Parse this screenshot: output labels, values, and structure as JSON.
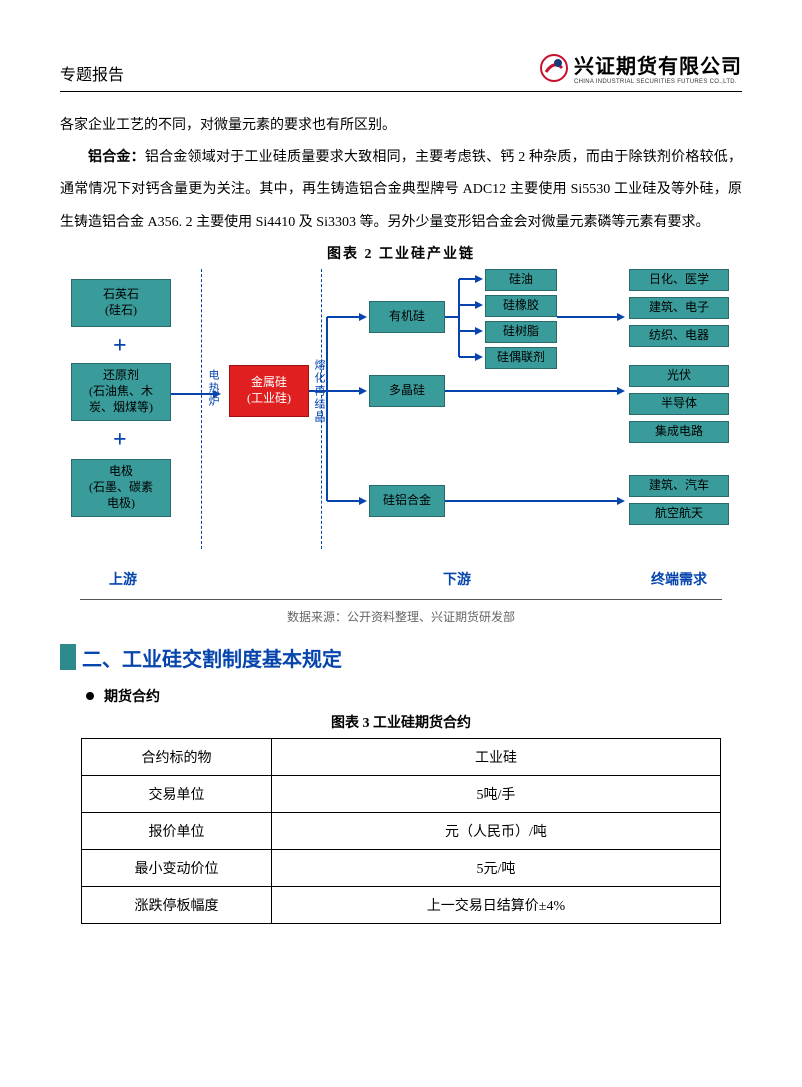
{
  "header": {
    "title": "专题报告"
  },
  "logo": {
    "zh": "兴证期货有限公司",
    "en": "CHINA INDUSTRIAL SECURITIES FUTURES CO.,LTD.",
    "red": "#c8102e",
    "blue": "#1a3a7a"
  },
  "body": {
    "p1": "各家企业工艺的不同，对微量元素的要求也有所区别。",
    "p2_strong": "铝合金：",
    "p2": "铝合金领域对于工业硅质量要求大致相同，主要考虑铁、钙 2 种杂质，而由于除铁剂价格较低，通常情况下对钙含量更为关注。其中，再生铸造铝合金典型牌号 ADC12 主要使用 Si5530 工业硅及等外硅，原生铸造铝合金 A356. 2 主要使用 Si4410 及 Si3303 等。另外少量变形铝合金会对微量元素磷等元素有要求。"
  },
  "fig2": {
    "title": "图表 2   工业硅产业链",
    "source": "数据来源：公开资料整理、兴证期货研发部",
    "colors": {
      "teal": "#3a9b9b",
      "teal_border": "#2a6a6a",
      "red": "#e02020",
      "blue_line": "#0645ad",
      "text_blue": "#0645ad"
    },
    "upstream": {
      "n1": "石英石\n(硅石)",
      "n2": "还原剂\n(石油焦、木\n炭、烟煤等)",
      "n3": "电极\n(石墨、碳素\n电极)"
    },
    "center": "金属硅\n(工业硅)",
    "vlabel_left": "电热炉",
    "vlabel_right": "熔化再结晶",
    "mid": {
      "organic": "有机硅",
      "poly": "多晶硅",
      "alloy": "硅铝合金"
    },
    "organic_out": [
      "硅油",
      "硅橡胶",
      "硅树脂",
      "硅偶联剂"
    ],
    "end_organic": [
      "日化、医学",
      "建筑、电子",
      "纺织、电器"
    ],
    "end_poly": [
      "光伏",
      "半导体",
      "集成电路"
    ],
    "end_alloy": [
      "建筑、汽车",
      "航空航天"
    ],
    "sections": {
      "up": "上游",
      "down": "下游",
      "end": "终端需求"
    }
  },
  "section2": {
    "heading": "二、工业硅交割制度基本规定",
    "bullet": "期货合约"
  },
  "fig3": {
    "title": "图表 3 工业硅期货合约",
    "rows": [
      [
        "合约标的物",
        "工业硅"
      ],
      [
        "交易单位",
        "5吨/手"
      ],
      [
        "报价单位",
        "元（人民币）/吨"
      ],
      [
        "最小变动价位",
        "5元/吨"
      ],
      [
        "涨跌停板幅度",
        "上一交易日结算价±4%"
      ]
    ]
  }
}
